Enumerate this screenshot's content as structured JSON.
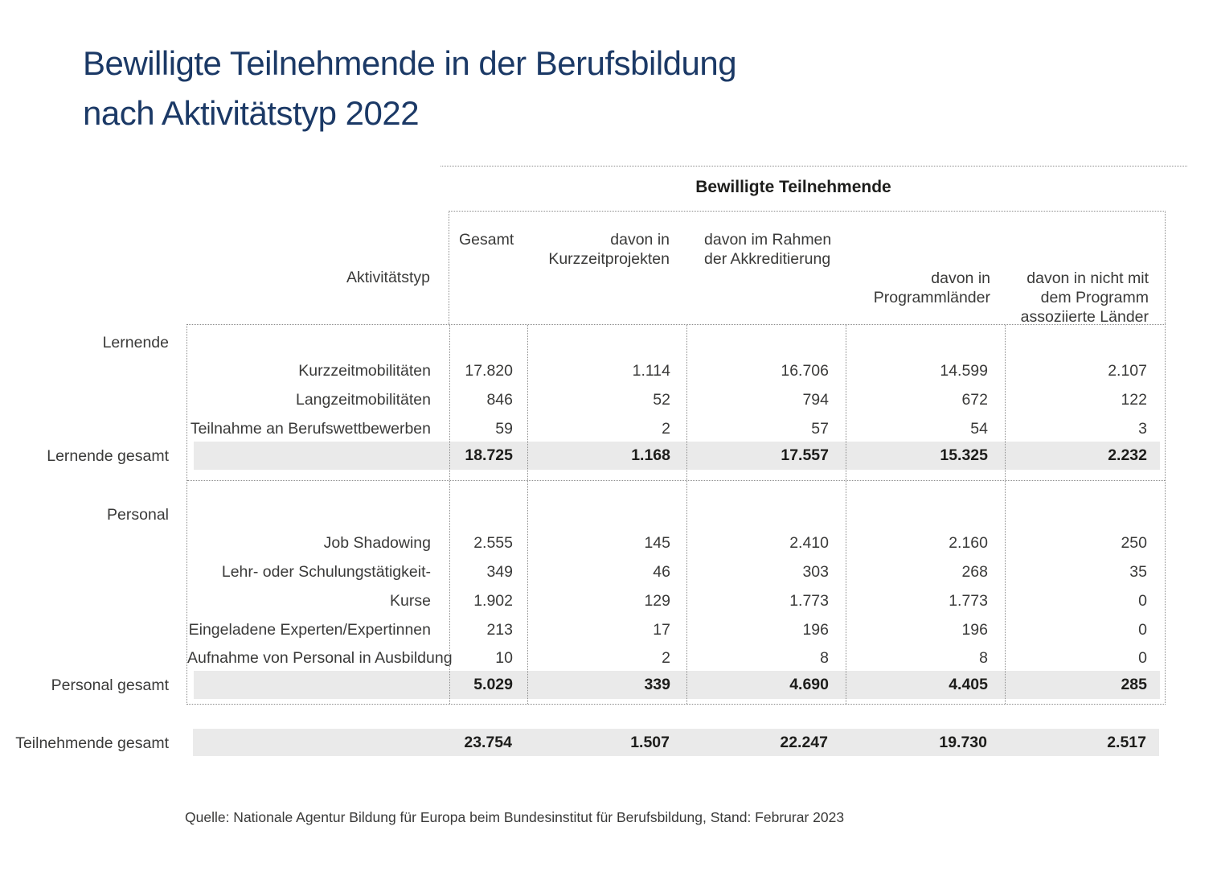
{
  "title": "Bewilligte Teilnehmende in der Berufsbildung\nnach Aktivitätstyp 2022",
  "table": {
    "header_group_title": "Bewilligte Teilnehmende",
    "axis_label": "Aktivitätstyp",
    "columns": [
      "Gesamt",
      "davon in\nKurzzeitprojekten",
      "davon im Rahmen\nder Akkreditierung",
      "davon in\nProgrammländer",
      "davon in nicht mit\ndem Programm\nassoziierte Länder"
    ],
    "sections": [
      {
        "label": "Lernende",
        "rows": [
          {
            "label": "Kurzzeitmobilitäten",
            "values": [
              "17.820",
              "1.114",
              "16.706",
              "14.599",
              "2.107"
            ]
          },
          {
            "label": "Langzeitmobilitäten",
            "values": [
              "846",
              "52",
              "794",
              "672",
              "122"
            ]
          },
          {
            "label": "Teilnahme an Berufswettbewerben",
            "values": [
              "59",
              "2",
              "57",
              "54",
              "3"
            ]
          }
        ],
        "total": {
          "label": "Lernende gesamt",
          "values": [
            "18.725",
            "1.168",
            "17.557",
            "15.325",
            "2.232"
          ]
        }
      },
      {
        "label": "Personal",
        "rows": [
          {
            "label": "Job Shadowing",
            "values": [
              "2.555",
              "145",
              "2.410",
              "2.160",
              "250"
            ]
          },
          {
            "label": "Lehr- oder Schulungstätigkeit-",
            "values": [
              "349",
              "46",
              "303",
              "268",
              "35"
            ]
          },
          {
            "label": "Kurse",
            "values": [
              "1.902",
              "129",
              "1.773",
              "1.773",
              "0"
            ]
          },
          {
            "label": "Eingeladene Experten/Expertinnen",
            "values": [
              "213",
              "17",
              "196",
              "196",
              "0"
            ]
          },
          {
            "label": "Aufnahme von Personal in Ausbildung",
            "values": [
              "10",
              "2",
              "8",
              "8",
              "0"
            ]
          }
        ],
        "total": {
          "label": "Personal gesamt",
          "values": [
            "5.029",
            "339",
            "4.690",
            "4.405",
            "285"
          ]
        }
      }
    ],
    "grand_total": {
      "label": "Teilnehmende gesamt",
      "values": [
        "23.754",
        "1.507",
        "22.247",
        "19.730",
        "2.517"
      ]
    }
  },
  "source": "Quelle: Nationale Agentur Bildung für Europa beim Bundesinstitut für Berufsbildung, Stand: Februrar 2023",
  "colors": {
    "title_blue": "#1B3966",
    "row_highlight": "#EAEAEA",
    "text": "#3A3A39",
    "dotted_line": "#8C8C8C"
  },
  "chart_data": {
    "type": "table",
    "title": "Bewilligte Teilnehmende in der Berufsbildung nach Aktivitätstyp 2022",
    "columns": [
      "Aktivitätstyp",
      "Gesamt",
      "davon in Kurzzeitprojekten",
      "davon im Rahmen der Akkreditierung",
      "davon in Programmländer",
      "davon in nicht mit dem Programm assoziierte Länder"
    ],
    "rows": [
      {
        "group": "Lernende",
        "activity": "Kurzzeitmobilitäten",
        "values": [
          17820,
          1114,
          16706,
          14599,
          2107
        ]
      },
      {
        "group": "Lernende",
        "activity": "Langzeitmobilitäten",
        "values": [
          846,
          52,
          794,
          672,
          122
        ]
      },
      {
        "group": "Lernende",
        "activity": "Teilnahme an Berufswettbewerben",
        "values": [
          59,
          2,
          57,
          54,
          3
        ]
      },
      {
        "group": "Lernende",
        "activity": "Lernende gesamt",
        "is_total": true,
        "values": [
          18725,
          1168,
          17557,
          15325,
          2232
        ]
      },
      {
        "group": "Personal",
        "activity": "Job Shadowing",
        "values": [
          2555,
          145,
          2410,
          2160,
          250
        ]
      },
      {
        "group": "Personal",
        "activity": "Lehr- oder Schulungstätigkeit-",
        "values": [
          349,
          46,
          303,
          268,
          35
        ]
      },
      {
        "group": "Personal",
        "activity": "Kurse",
        "values": [
          1902,
          129,
          1773,
          1773,
          0
        ]
      },
      {
        "group": "Personal",
        "activity": "Eingeladene Experten/Expertinnen",
        "values": [
          213,
          17,
          196,
          196,
          0
        ]
      },
      {
        "group": "Personal",
        "activity": "Aufnahme von Personal in Ausbildung",
        "values": [
          10,
          2,
          8,
          8,
          0
        ]
      },
      {
        "group": "Personal",
        "activity": "Personal gesamt",
        "is_total": true,
        "values": [
          5029,
          339,
          4690,
          4405,
          285
        ]
      },
      {
        "group": "Gesamt",
        "activity": "Teilnehmende gesamt",
        "is_total": true,
        "values": [
          23754,
          1507,
          22247,
          19730,
          2517
        ]
      }
    ],
    "source": "Quelle: Nationale Agentur Bildung für Europa beim Bundesinstitut für Berufsbildung, Stand: Februrar 2023"
  }
}
